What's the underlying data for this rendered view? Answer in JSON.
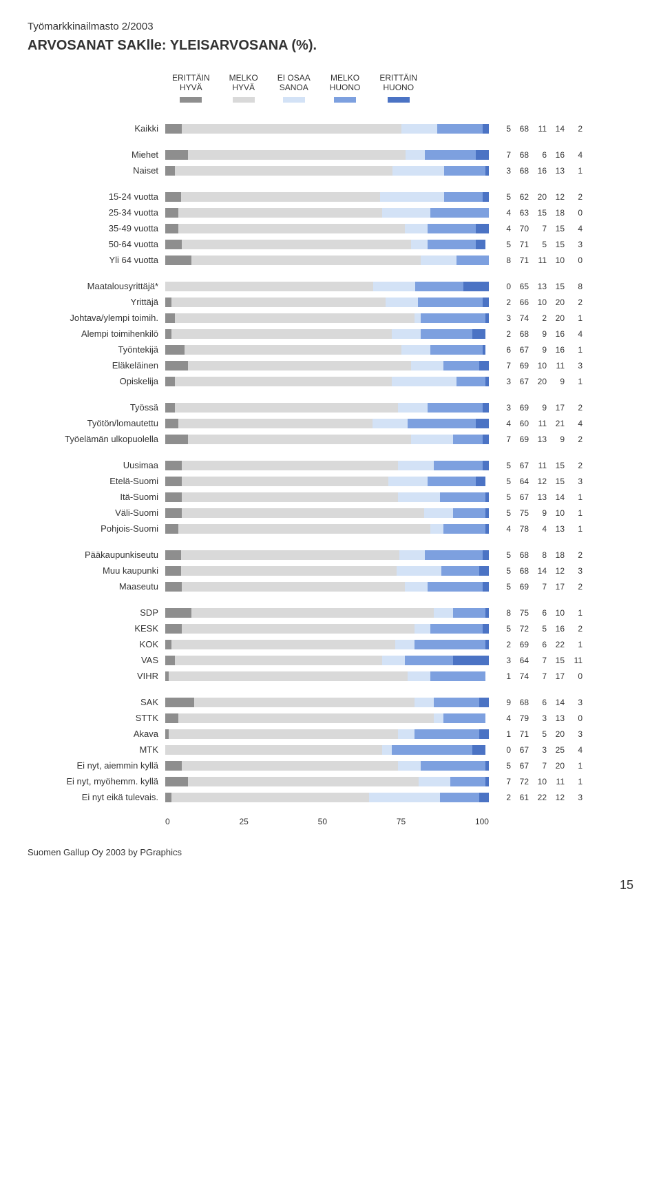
{
  "header": {
    "small": "Työmarkkinailmasto 2/2003",
    "title": "ARVOSANAT SAKlle: YLEISARVOSANA (%)."
  },
  "legend": [
    {
      "label": "ERITTÄIN\nHYVÄ",
      "color": "#8e8e8e"
    },
    {
      "label": "MELKO\nHYVÄ",
      "color": "#d9d9d9"
    },
    {
      "label": "EI OSAA\nSANOA",
      "color": "#d3e2f6"
    },
    {
      "label": "MELKO\nHUONO",
      "color": "#7da0df"
    },
    {
      "label": "ERITTÄIN\nHUONO",
      "color": "#4b73c4"
    }
  ],
  "colors": [
    "#8e8e8e",
    "#d9d9d9",
    "#d3e2f6",
    "#7da0df",
    "#4b73c4"
  ],
  "axis": {
    "ticks": [
      "0",
      "25",
      "50",
      "75",
      "100"
    ]
  },
  "groups": [
    {
      "rows": [
        {
          "label": "Kaikki",
          "v": [
            5,
            68,
            11,
            14,
            2
          ]
        }
      ]
    },
    {
      "rows": [
        {
          "label": "Miehet",
          "v": [
            7,
            68,
            6,
            16,
            4
          ]
        },
        {
          "label": "Naiset",
          "v": [
            3,
            68,
            16,
            13,
            1
          ]
        }
      ]
    },
    {
      "rows": [
        {
          "label": "15-24 vuotta",
          "v": [
            5,
            62,
            20,
            12,
            2
          ]
        },
        {
          "label": "25-34 vuotta",
          "v": [
            4,
            63,
            15,
            18,
            0
          ]
        },
        {
          "label": "35-49 vuotta",
          "v": [
            4,
            70,
            7,
            15,
            4
          ]
        },
        {
          "label": "50-64 vuotta",
          "v": [
            5,
            71,
            5,
            15,
            3
          ]
        },
        {
          "label": "Yli 64 vuotta",
          "v": [
            8,
            71,
            11,
            10,
            0
          ]
        }
      ]
    },
    {
      "rows": [
        {
          "label": "Maatalousyrittäjä*",
          "v": [
            0,
            65,
            13,
            15,
            8
          ]
        },
        {
          "label": "Yrittäjä",
          "v": [
            2,
            66,
            10,
            20,
            2
          ]
        },
        {
          "label": "Johtava/ylempi toimih.",
          "v": [
            3,
            74,
            2,
            20,
            1
          ]
        },
        {
          "label": "Alempi toimihenkilö",
          "v": [
            2,
            68,
            9,
            16,
            4
          ]
        },
        {
          "label": "Työntekijä",
          "v": [
            6,
            67,
            9,
            16,
            1
          ]
        },
        {
          "label": "Eläkeläinen",
          "v": [
            7,
            69,
            10,
            11,
            3
          ]
        },
        {
          "label": "Opiskelija",
          "v": [
            3,
            67,
            20,
            9,
            1
          ]
        }
      ]
    },
    {
      "rows": [
        {
          "label": "Työssä",
          "v": [
            3,
            69,
            9,
            17,
            2
          ]
        },
        {
          "label": "Työtön/lomautettu",
          "v": [
            4,
            60,
            11,
            21,
            4
          ]
        },
        {
          "label": "Työelämän ulkopuolella",
          "v": [
            7,
            69,
            13,
            9,
            2
          ]
        }
      ]
    },
    {
      "rows": [
        {
          "label": "Uusimaa",
          "v": [
            5,
            67,
            11,
            15,
            2
          ]
        },
        {
          "label": "Etelä-Suomi",
          "v": [
            5,
            64,
            12,
            15,
            3
          ]
        },
        {
          "label": "Itä-Suomi",
          "v": [
            5,
            67,
            13,
            14,
            1
          ]
        },
        {
          "label": "Väli-Suomi",
          "v": [
            5,
            75,
            9,
            10,
            1
          ]
        },
        {
          "label": "Pohjois-Suomi",
          "v": [
            4,
            78,
            4,
            13,
            1
          ]
        }
      ]
    },
    {
      "rows": [
        {
          "label": "Pääkaupunkiseutu",
          "v": [
            5,
            68,
            8,
            18,
            2
          ]
        },
        {
          "label": "Muu kaupunki",
          "v": [
            5,
            68,
            14,
            12,
            3
          ]
        },
        {
          "label": "Maaseutu",
          "v": [
            5,
            69,
            7,
            17,
            2
          ]
        }
      ]
    },
    {
      "rows": [
        {
          "label": "SDP",
          "v": [
            8,
            75,
            6,
            10,
            1
          ]
        },
        {
          "label": "KESK",
          "v": [
            5,
            72,
            5,
            16,
            2
          ]
        },
        {
          "label": "KOK",
          "v": [
            2,
            69,
            6,
            22,
            1
          ]
        },
        {
          "label": "VAS",
          "v": [
            3,
            64,
            7,
            15,
            11
          ]
        },
        {
          "label": "VIHR",
          "v": [
            1,
            74,
            7,
            17,
            0
          ]
        }
      ]
    },
    {
      "rows": [
        {
          "label": "SAK",
          "v": [
            9,
            68,
            6,
            14,
            3
          ]
        },
        {
          "label": "STTK",
          "v": [
            4,
            79,
            3,
            13,
            0
          ]
        },
        {
          "label": "Akava",
          "v": [
            1,
            71,
            5,
            20,
            3
          ]
        },
        {
          "label": "MTK",
          "v": [
            0,
            67,
            3,
            25,
            4
          ]
        },
        {
          "label": "Ei nyt, aiemmin kyllä",
          "v": [
            5,
            67,
            7,
            20,
            1
          ]
        },
        {
          "label": "Ei nyt, myöhemm. kyllä",
          "v": [
            7,
            72,
            10,
            11,
            1
          ]
        },
        {
          "label": "Ei nyt eikä tulevais.",
          "v": [
            2,
            61,
            22,
            12,
            3
          ]
        }
      ]
    }
  ],
  "footer": "Suomen Gallup Oy 2003 by PGraphics",
  "pageNum": "15"
}
